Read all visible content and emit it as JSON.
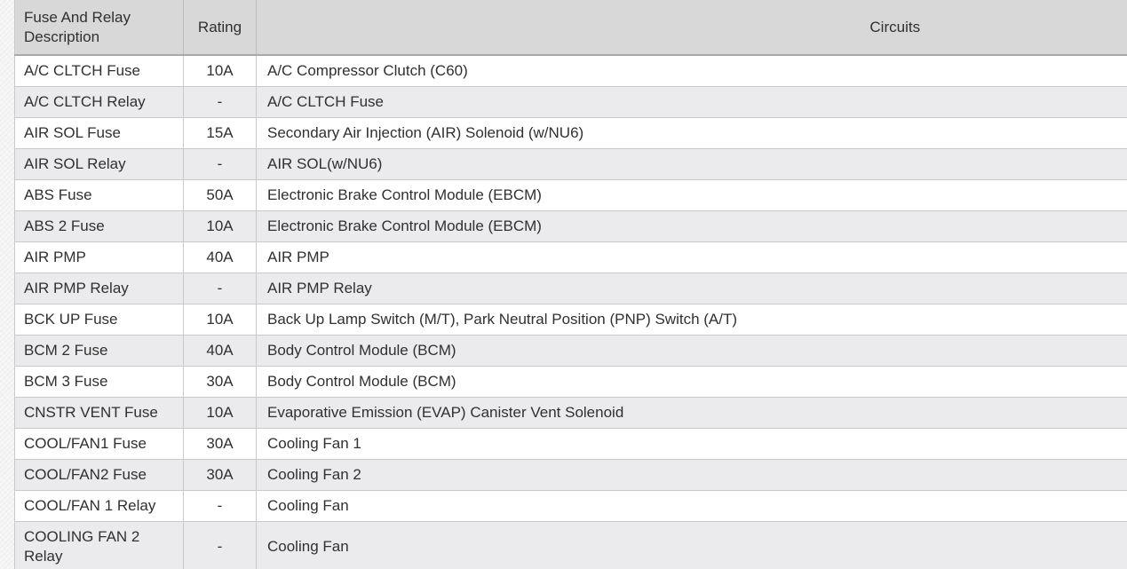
{
  "colors": {
    "header_bg": "#d8d8d8",
    "row_bg": "#ffffff",
    "row_alt_bg": "#ebebed",
    "border": "#c9c9c9",
    "header_border": "#a9a9a9",
    "header_divider": "#bdbdbd",
    "text": "#303030",
    "page_bg": "#f7f7f7"
  },
  "table": {
    "columns": [
      {
        "label": "Fuse And Relay Description",
        "align": "left"
      },
      {
        "label": "Rating",
        "align": "center"
      },
      {
        "label": "Circuits",
        "align": "center"
      }
    ],
    "rows": [
      {
        "description": "A/C CLTCH Fuse",
        "rating": "10A",
        "circuits": "A/C Compressor Clutch (C60)"
      },
      {
        "description": "A/C CLTCH Relay",
        "rating": "-",
        "circuits": "A/C CLTCH Fuse"
      },
      {
        "description": "AIR SOL Fuse",
        "rating": "15A",
        "circuits": "Secondary Air Injection (AIR) Solenoid (w/NU6)"
      },
      {
        "description": "AIR SOL Relay",
        "rating": "-",
        "circuits": "AIR SOL(w/NU6)"
      },
      {
        "description": "ABS Fuse",
        "rating": "50A",
        "circuits": "Electronic Brake Control Module (EBCM)"
      },
      {
        "description": "ABS 2 Fuse",
        "rating": "10A",
        "circuits": "Electronic Brake Control Module (EBCM)"
      },
      {
        "description": "AIR PMP",
        "rating": "40A",
        "circuits": "AIR PMP"
      },
      {
        "description": "AIR PMP Relay",
        "rating": "-",
        "circuits": "AIR PMP Relay"
      },
      {
        "description": "BCK UP Fuse",
        "rating": "10A",
        "circuits": "Back Up Lamp Switch (M/T), Park Neutral Position (PNP) Switch (A/T)"
      },
      {
        "description": "BCM 2 Fuse",
        "rating": "40A",
        "circuits": "Body Control Module (BCM)"
      },
      {
        "description": "BCM 3 Fuse",
        "rating": "30A",
        "circuits": "Body Control Module (BCM)"
      },
      {
        "description": "CNSTR VENT Fuse",
        "rating": "10A",
        "circuits": "Evaporative Emission (EVAP) Canister Vent Solenoid"
      },
      {
        "description": "COOL/FAN1 Fuse",
        "rating": "30A",
        "circuits": "Cooling Fan 1"
      },
      {
        "description": "COOL/FAN2 Fuse",
        "rating": "30A",
        "circuits": "Cooling Fan 2"
      },
      {
        "description": "COOL/FAN 1 Relay",
        "rating": "-",
        "circuits": "Cooling Fan"
      },
      {
        "description": "COOLING FAN 2 Relay",
        "rating": "-",
        "circuits": "Cooling Fan"
      }
    ]
  }
}
